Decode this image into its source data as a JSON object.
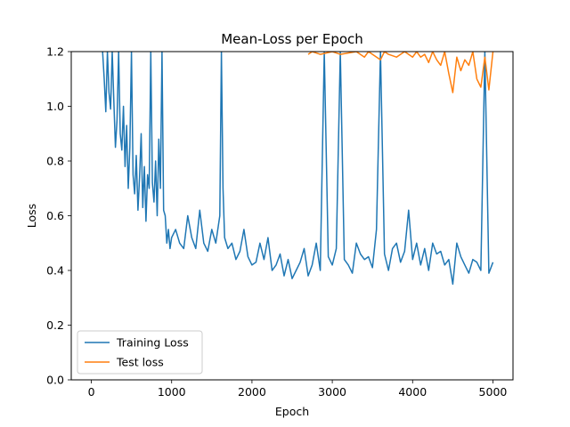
{
  "chart_data": {
    "type": "line",
    "title": "Mean-Loss per Epoch",
    "xlabel": "Epoch",
    "ylabel": "Loss",
    "xlim": [
      -250,
      5250
    ],
    "ylim": [
      0.0,
      1.2
    ],
    "xticks": [
      0,
      1000,
      2000,
      3000,
      4000,
      5000
    ],
    "yticks": [
      0.0,
      0.2,
      0.4,
      0.6,
      0.8,
      1.0,
      1.2
    ],
    "xtick_labels": [
      "0",
      "1000",
      "2000",
      "3000",
      "4000",
      "5000"
    ],
    "ytick_labels": [
      "0.0",
      "0.2",
      "0.4",
      "0.6",
      "0.8",
      "1.0",
      "1.2"
    ],
    "grid": false,
    "legend_position": "lower-left",
    "series": [
      {
        "name": "Training Loss",
        "color": "#1f77b4",
        "x": [
          140,
          160,
          180,
          200,
          220,
          240,
          260,
          280,
          300,
          320,
          340,
          360,
          380,
          400,
          420,
          440,
          460,
          480,
          500,
          520,
          540,
          560,
          580,
          600,
          620,
          640,
          660,
          680,
          700,
          720,
          740,
          760,
          780,
          800,
          820,
          840,
          860,
          880,
          900,
          920,
          940,
          960,
          980,
          1000,
          1050,
          1100,
          1150,
          1200,
          1250,
          1300,
          1350,
          1400,
          1450,
          1500,
          1550,
          1600,
          1620,
          1640,
          1660,
          1700,
          1750,
          1800,
          1850,
          1900,
          1950,
          2000,
          2050,
          2100,
          2150,
          2200,
          2250,
          2300,
          2350,
          2400,
          2450,
          2500,
          2550,
          2600,
          2650,
          2700,
          2750,
          2800,
          2850,
          2900,
          2950,
          3000,
          3050,
          3100,
          3150,
          3200,
          3250,
          3300,
          3350,
          3400,
          3450,
          3500,
          3550,
          3600,
          3650,
          3700,
          3750,
          3800,
          3850,
          3900,
          3950,
          4000,
          4050,
          4100,
          4150,
          4200,
          4250,
          4300,
          4350,
          4400,
          4450,
          4500,
          4550,
          4600,
          4650,
          4700,
          4750,
          4800,
          4850,
          4900,
          4950,
          5000
        ],
        "values": [
          1.2,
          1.1,
          0.98,
          1.2,
          1.05,
          0.99,
          1.2,
          1.02,
          0.85,
          0.95,
          1.2,
          0.9,
          0.84,
          1.0,
          0.78,
          0.93,
          0.7,
          0.85,
          1.2,
          0.75,
          0.68,
          0.82,
          0.62,
          0.74,
          0.9,
          0.63,
          0.78,
          0.58,
          0.75,
          0.7,
          1.2,
          0.72,
          0.65,
          0.8,
          0.6,
          0.88,
          0.7,
          1.2,
          0.62,
          0.6,
          0.5,
          0.55,
          0.48,
          0.52,
          0.55,
          0.5,
          0.48,
          0.6,
          0.52,
          0.48,
          0.62,
          0.5,
          0.47,
          0.55,
          0.5,
          0.6,
          1.2,
          0.7,
          0.52,
          0.48,
          0.5,
          0.44,
          0.47,
          0.55,
          0.45,
          0.42,
          0.43,
          0.5,
          0.44,
          0.52,
          0.4,
          0.42,
          0.46,
          0.38,
          0.44,
          0.37,
          0.4,
          0.43,
          0.48,
          0.38,
          0.42,
          0.5,
          0.4,
          1.2,
          0.45,
          0.42,
          0.48,
          1.2,
          0.44,
          0.42,
          0.39,
          0.5,
          0.46,
          0.44,
          0.45,
          0.41,
          0.55,
          1.2,
          0.46,
          0.4,
          0.48,
          0.5,
          0.43,
          0.47,
          0.62,
          0.44,
          0.5,
          0.42,
          0.48,
          0.4,
          0.5,
          0.46,
          0.47,
          0.42,
          0.44,
          0.35,
          0.5,
          0.45,
          0.42,
          0.39,
          0.44,
          0.43,
          0.4,
          1.2,
          0.39,
          0.43
        ]
      },
      {
        "name": "Test loss",
        "color": "#ff7f0e",
        "x": [
          2700,
          2750,
          2850,
          3000,
          3100,
          3300,
          3400,
          3450,
          3600,
          3650,
          3700,
          3800,
          3850,
          3900,
          3950,
          4000,
          4050,
          4100,
          4150,
          4200,
          4250,
          4300,
          4350,
          4400,
          4450,
          4500,
          4550,
          4600,
          4650,
          4700,
          4750,
          4800,
          4850,
          4900,
          4950,
          5000
        ],
        "values": [
          1.19,
          1.2,
          1.19,
          1.2,
          1.19,
          1.2,
          1.18,
          1.2,
          1.17,
          1.2,
          1.19,
          1.18,
          1.19,
          1.2,
          1.19,
          1.18,
          1.2,
          1.18,
          1.19,
          1.16,
          1.2,
          1.17,
          1.15,
          1.2,
          1.12,
          1.05,
          1.18,
          1.13,
          1.17,
          1.15,
          1.2,
          1.1,
          1.07,
          1.18,
          1.06,
          1.2
        ]
      }
    ]
  }
}
